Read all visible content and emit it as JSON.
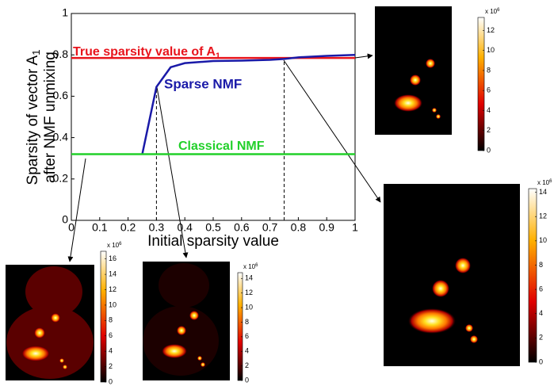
{
  "chart_data": {
    "type": "line",
    "xlabel": "Initial sparsity value",
    "ylabel": {
      "line1": "Sparsity of vector A",
      "line1_sub": "1",
      "line2": "after NMF unmixing"
    },
    "xlim": [
      0,
      1
    ],
    "ylim": [
      0,
      1
    ],
    "xticks": [
      0,
      0.1,
      0.2,
      0.3,
      0.4,
      0.5,
      0.6,
      0.7,
      0.8,
      0.9,
      1
    ],
    "yticks": [
      0,
      0.2,
      0.4,
      0.6,
      0.8,
      1
    ],
    "series": [
      {
        "name": "True sparsity value of A",
        "name_sub": "1",
        "color": "#e8141c",
        "x": [
          0,
          1
        ],
        "values": [
          0.785,
          0.785
        ]
      },
      {
        "name": "Sparse NMF",
        "color": "#1a1aa8",
        "x": [
          0.25,
          0.3,
          0.35,
          0.4,
          0.5,
          0.6,
          0.7,
          0.75,
          0.8,
          0.9,
          1
        ],
        "values": [
          0.32,
          0.645,
          0.74,
          0.76,
          0.77,
          0.772,
          0.776,
          0.78,
          0.788,
          0.795,
          0.8
        ]
      },
      {
        "name": "Classical NMF",
        "color": "#22d02a",
        "x": [
          0,
          1
        ],
        "values": [
          0.32,
          0.32
        ]
      }
    ],
    "highlighted_x": [
      0.3,
      0.75
    ],
    "insets": [
      {
        "clim": [
          0,
          13.3
        ],
        "colorbar_ticks": [
          0,
          2,
          4,
          6,
          8,
          10,
          12
        ],
        "multiplier": "x 10",
        "exponent": "6"
      },
      {
        "clim": [
          0,
          14.3
        ],
        "colorbar_ticks": [
          0,
          2,
          4,
          6,
          8,
          10,
          12,
          14
        ],
        "multiplier": "x 10",
        "exponent": "6"
      },
      {
        "clim": [
          0,
          17
        ],
        "colorbar_ticks": [
          0,
          2,
          4,
          6,
          8,
          10,
          12,
          14,
          16
        ],
        "multiplier": "x 10",
        "exponent": "6"
      },
      {
        "clim": [
          0,
          14.8
        ],
        "colorbar_ticks": [
          0,
          2,
          4,
          6,
          8,
          10,
          12,
          14
        ],
        "multiplier": "x 10",
        "exponent": "6"
      }
    ]
  }
}
